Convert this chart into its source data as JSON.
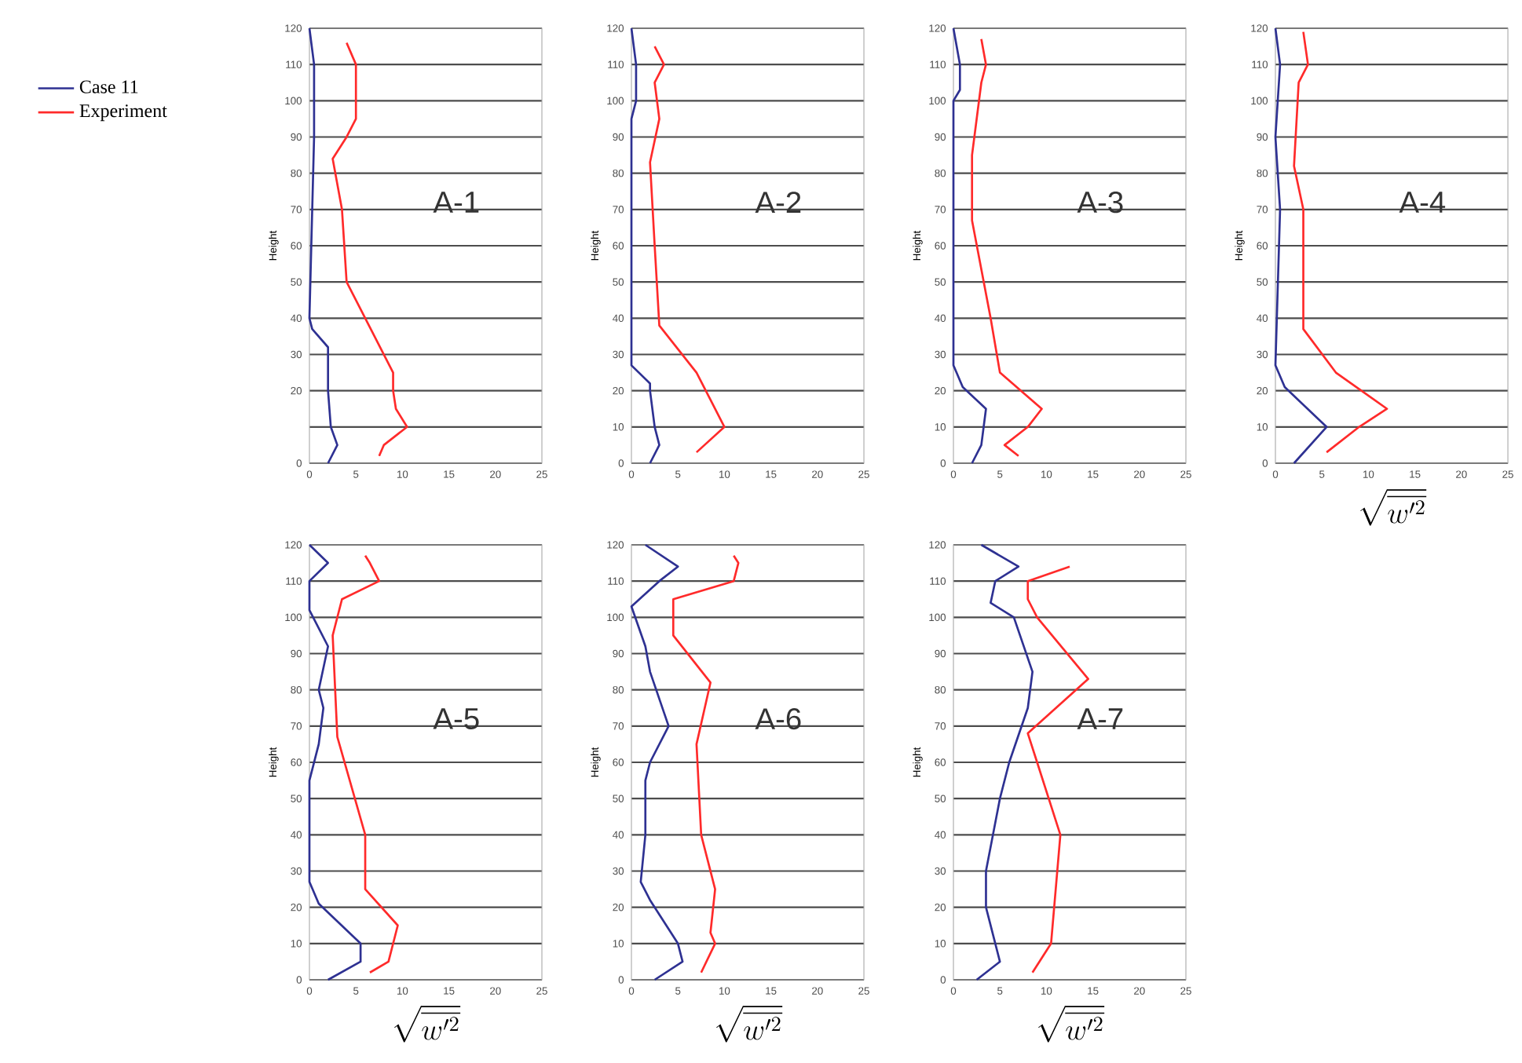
{
  "chart_data": [
    {
      "type": "line",
      "ylabel": "Height",
      "annotations": [
        "A-1"
      ],
      "xlim": [
        0,
        25
      ],
      "ylim": [
        0,
        120
      ],
      "xticks": [
        0,
        5,
        10,
        15,
        20,
        25
      ],
      "yticks": [
        0,
        {
          "value": 10,
          "label": null
        },
        20,
        30,
        40,
        50,
        60,
        70,
        80,
        90,
        100,
        110,
        120
      ],
      "grid": "y",
      "marker": "none",
      "legend": "left",
      "series": [
        {
          "name": "Case 11",
          "color": "#2e3192",
          "x": [
            2,
            3,
            2.3,
            2,
            2,
            0.3,
            0,
            0.5,
            0.5,
            0
          ],
          "values": [
            0,
            5,
            10,
            20,
            32,
            37,
            40,
            90,
            110,
            120
          ]
        },
        {
          "name": "Experiment",
          "color": "#ff2a2a",
          "x": [
            7.5,
            8,
            10.5,
            9.3,
            9,
            9,
            4,
            3.5,
            2.5,
            4,
            5,
            5,
            4
          ],
          "values": [
            2,
            5,
            10,
            15,
            20,
            25,
            50,
            70,
            84,
            90,
            95,
            110,
            116
          ]
        }
      ]
    },
    {
      "type": "line",
      "ylabel": "Height",
      "annotations": [
        "A-2"
      ],
      "xlim": [
        0,
        25
      ],
      "ylim": [
        0,
        120
      ],
      "xticks": [
        0,
        5,
        10,
        15,
        20,
        25
      ],
      "yticks": [
        0,
        10,
        20,
        30,
        40,
        50,
        60,
        70,
        80,
        90,
        100,
        110,
        120
      ],
      "grid": "y",
      "marker": "none",
      "series": [
        {
          "color": "#2e3192",
          "x": [
            2,
            3,
            2.5,
            2,
            2,
            0,
            0,
            0.5,
            0.5,
            0
          ],
          "values": [
            0,
            5,
            10,
            20,
            22,
            27,
            95,
            100,
            110,
            120
          ]
        },
        {
          "color": "#ff2a2a",
          "x": [
            7,
            10,
            7,
            3,
            2.5,
            2,
            3,
            2.5,
            3.5,
            2.5
          ],
          "values": [
            3,
            10,
            25,
            38,
            60,
            83,
            95,
            105,
            110,
            115
          ]
        }
      ]
    },
    {
      "type": "line",
      "ylabel": "Height",
      "annotations": [
        "A-3"
      ],
      "xlim": [
        0,
        25
      ],
      "ylim": [
        0,
        120
      ],
      "xticks": [
        0,
        5,
        10,
        15,
        20,
        25
      ],
      "yticks": [
        0,
        10,
        20,
        30,
        40,
        50,
        60,
        70,
        80,
        90,
        100,
        110,
        120
      ],
      "grid": "y",
      "marker": "none",
      "series": [
        {
          "color": "#2e3192",
          "x": [
            2,
            3,
            3.5,
            1,
            0,
            0,
            0.7,
            0.7,
            0
          ],
          "values": [
            0,
            5,
            15,
            21,
            27,
            100,
            103,
            110,
            120
          ]
        },
        {
          "color": "#ff2a2a",
          "x": [
            7,
            5.5,
            8,
            9.5,
            5,
            4,
            2,
            2,
            3,
            3.5,
            3
          ],
          "values": [
            2,
            5,
            10,
            15,
            25,
            40,
            67,
            85,
            105,
            110,
            117
          ]
        }
      ]
    },
    {
      "type": "line",
      "ylabel": "Height",
      "xlabel": "\\sqrt{\\overline{w'^2}}",
      "annotations": [
        "A-4"
      ],
      "xlim": [
        0,
        25
      ],
      "ylim": [
        0,
        120
      ],
      "xticks": [
        0,
        5,
        10,
        15,
        20,
        25
      ],
      "yticks": [
        0,
        10,
        20,
        30,
        40,
        50,
        60,
        70,
        80,
        90,
        100,
        110,
        120
      ],
      "grid": "y",
      "marker": "none",
      "series": [
        {
          "color": "#2e3192",
          "x": [
            2,
            5.5,
            1,
            0,
            0.5,
            0,
            0.5,
            0
          ],
          "values": [
            0,
            10,
            21,
            27,
            70,
            90,
            110,
            120
          ]
        },
        {
          "color": "#ff2a2a",
          "x": [
            5.5,
            9,
            12,
            6.5,
            3,
            3,
            2,
            2.5,
            3.5,
            3
          ],
          "values": [
            3,
            10,
            15,
            25,
            37,
            70,
            82,
            105,
            110,
            119
          ]
        }
      ]
    },
    {
      "type": "line",
      "ylabel": "Height",
      "xlabel": "\\sqrt{\\overline{w'^2}}",
      "annotations": [
        "A-5"
      ],
      "xlim": [
        0,
        25
      ],
      "ylim": [
        0,
        120
      ],
      "xticks": [
        0,
        5,
        10,
        15,
        20,
        25
      ],
      "yticks": [
        0,
        10,
        20,
        30,
        40,
        50,
        60,
        70,
        80,
        90,
        100,
        110,
        120
      ],
      "grid": "y",
      "marker": "none",
      "series": [
        {
          "color": "#2e3192",
          "x": [
            2,
            5.5,
            5.5,
            1,
            0,
            0,
            1,
            1.5,
            1,
            2,
            0,
            0,
            2,
            0
          ],
          "values": [
            0,
            5,
            10,
            21,
            27,
            55,
            65,
            75,
            80,
            92,
            102,
            110,
            115,
            120
          ]
        },
        {
          "color": "#ff2a2a",
          "x": [
            6.5,
            8.5,
            9.5,
            6,
            6,
            3,
            2.5,
            3.5,
            7.5,
            6.5,
            6
          ],
          "values": [
            2,
            5,
            15,
            25,
            40,
            67,
            95,
            105,
            110,
            115,
            117
          ]
        }
      ]
    },
    {
      "type": "line",
      "ylabel": "Height",
      "xlabel": "\\sqrt{\\overline{w'^2}}",
      "annotations": [
        "A-6"
      ],
      "xlim": [
        0,
        25
      ],
      "ylim": [
        0,
        120
      ],
      "xticks": [
        0,
        5,
        10,
        15,
        20,
        25
      ],
      "yticks": [
        0,
        10,
        20,
        30,
        40,
        50,
        60,
        70,
        80,
        90,
        100,
        110,
        120
      ],
      "grid": "y",
      "marker": "none",
      "series": [
        {
          "color": "#2e3192",
          "x": [
            2.5,
            5.5,
            5,
            2,
            1,
            1.5,
            1.5,
            2,
            4,
            2,
            1.5,
            0,
            3,
            5,
            1.5
          ],
          "values": [
            0,
            5,
            10,
            22,
            27,
            40,
            55,
            60,
            70,
            85,
            92,
            103,
            110,
            114,
            120
          ]
        },
        {
          "color": "#ff2a2a",
          "x": [
            7.5,
            9,
            8.5,
            9,
            7.5,
            7,
            8.5,
            4.5,
            4.5,
            11,
            11.5,
            11
          ],
          "values": [
            2,
            10,
            13,
            25,
            40,
            65,
            82,
            95,
            105,
            110,
            115,
            117
          ]
        }
      ]
    },
    {
      "type": "line",
      "ylabel": "Height",
      "xlabel": "\\sqrt{\\overline{w'^2}}",
      "annotations": [
        "A-7"
      ],
      "xlim": [
        0,
        25
      ],
      "ylim": [
        0,
        120
      ],
      "xticks": [
        0,
        5,
        10,
        15,
        20,
        25
      ],
      "yticks": [
        0,
        10,
        20,
        30,
        40,
        50,
        60,
        70,
        80,
        90,
        100,
        110,
        120
      ],
      "grid": "y",
      "marker": "none",
      "series": [
        {
          "color": "#2e3192",
          "x": [
            2.5,
            5,
            3.5,
            3.5,
            5,
            6,
            8,
            8.5,
            6.5,
            4,
            4.5,
            7,
            3
          ],
          "values": [
            0,
            5,
            20,
            30,
            50,
            60,
            75,
            85,
            100,
            104,
            110,
            114,
            120
          ]
        },
        {
          "color": "#ff2a2a",
          "x": [
            8.5,
            10.5,
            11,
            11.5,
            9,
            8,
            14.5,
            9,
            8,
            8,
            12.5
          ],
          "values": [
            2,
            10,
            25,
            40,
            60,
            68,
            83,
            100,
            105,
            110,
            114
          ]
        }
      ]
    }
  ]
}
